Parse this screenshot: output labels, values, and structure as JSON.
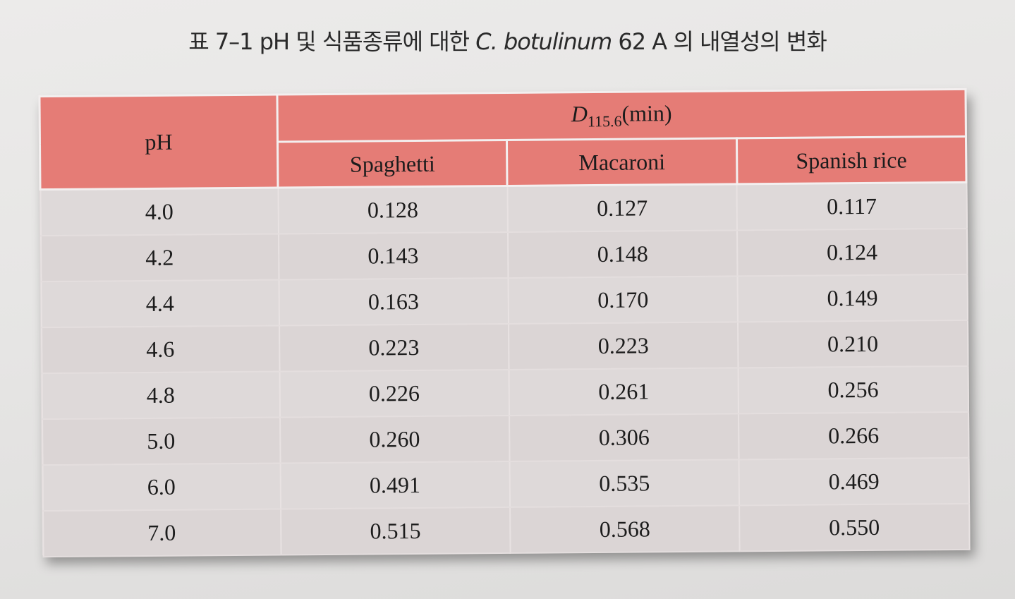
{
  "caption": {
    "prefix": "표 7–1  pH 및 식품종류에 대한 ",
    "species": "C. botulinum",
    "suffix": " 62 A 의 내열성의 변화"
  },
  "table": {
    "ph_header": "pH",
    "d_header": {
      "symbol": "D",
      "subscript": "115.6",
      "unit": "(min)"
    },
    "columns": [
      "Spaghetti",
      "Macaroni",
      "Spanish rice"
    ],
    "rows": [
      {
        "ph": "4.0",
        "spaghetti": "0.128",
        "macaroni": "0.127",
        "spanish_rice": "0.117"
      },
      {
        "ph": "4.2",
        "spaghetti": "0.143",
        "macaroni": "0.148",
        "spanish_rice": "0.124"
      },
      {
        "ph": "4.4",
        "spaghetti": "0.163",
        "macaroni": "0.170",
        "spanish_rice": "0.149"
      },
      {
        "ph": "4.6",
        "spaghetti": "0.223",
        "macaroni": "0.223",
        "spanish_rice": "0.210"
      },
      {
        "ph": "4.8",
        "spaghetti": "0.226",
        "macaroni": "0.261",
        "spanish_rice": "0.256"
      },
      {
        "ph": "5.0",
        "spaghetti": "0.260",
        "macaroni": "0.306",
        "spanish_rice": "0.266"
      },
      {
        "ph": "6.0",
        "spaghetti": "0.491",
        "macaroni": "0.535",
        "spanish_rice": "0.469"
      },
      {
        "ph": "7.0",
        "spaghetti": "0.515",
        "macaroni": "0.568",
        "spanish_rice": "0.550"
      }
    ]
  },
  "colors": {
    "header_bg": "#e57c76",
    "body_bg": "#ded9d9",
    "page_bg": "#e8e7e6"
  }
}
